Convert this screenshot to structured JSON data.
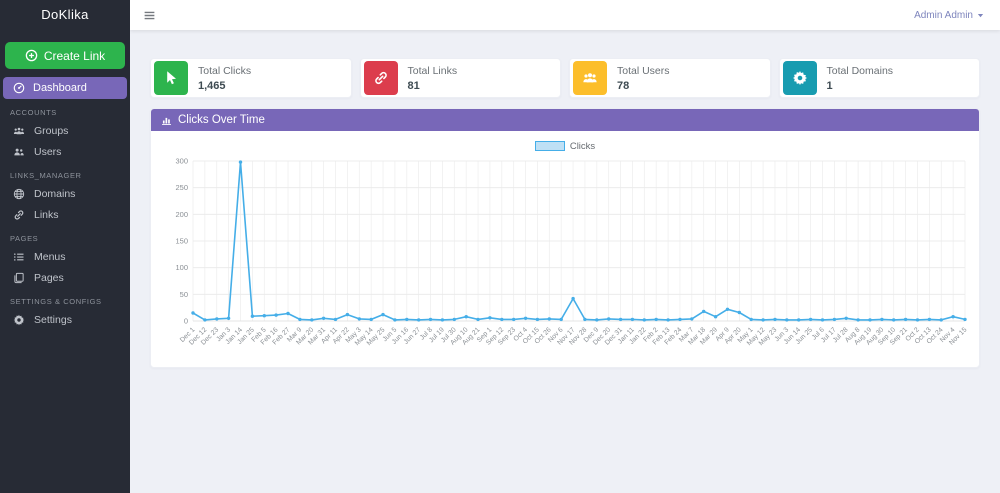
{
  "app": {
    "brand": "DoKlika"
  },
  "topbar": {
    "user_menu_label": "Admin Admin"
  },
  "sidebar": {
    "create_link_label": "Create Link",
    "dashboard": {
      "label": "Dashboard",
      "icon": "dashboard",
      "active": true
    },
    "sections": [
      {
        "label": "ACCOUNTS",
        "items": [
          {
            "label": "Groups",
            "icon": "groups"
          },
          {
            "label": "Users",
            "icon": "users"
          }
        ]
      },
      {
        "label": "LINKS_MANAGER",
        "items": [
          {
            "label": "Domains",
            "icon": "globe"
          },
          {
            "label": "Links",
            "icon": "link"
          }
        ]
      },
      {
        "label": "PAGES",
        "items": [
          {
            "label": "Menus",
            "icon": "menu-list"
          },
          {
            "label": "Pages",
            "icon": "pages"
          }
        ]
      },
      {
        "label": "SETTINGS & CONFIGS",
        "items": [
          {
            "label": "Settings",
            "icon": "gear"
          }
        ]
      }
    ]
  },
  "stat_cards": [
    {
      "label": "Total Clicks",
      "value": "1,465",
      "icon": "mouse-pointer",
      "color": "#2db44d"
    },
    {
      "label": "Total Links",
      "value": "81",
      "icon": "link",
      "color": "#dc3d4d"
    },
    {
      "label": "Total Users",
      "value": "78",
      "icon": "users-group",
      "color": "#fcbe2b"
    },
    {
      "label": "Total Domains",
      "value": "1",
      "icon": "gear",
      "color": "#189cb0"
    }
  ],
  "chart_panel": {
    "title": "Clicks Over Time",
    "header_color": "#7867b8"
  },
  "chart_data": {
    "type": "line",
    "title": "Clicks Over Time",
    "legend_position": "top",
    "grid": true,
    "ylim": [
      0,
      300
    ],
    "yticks": [
      0,
      50,
      100,
      150,
      200,
      250,
      300
    ],
    "line_color": "#45aee8",
    "fill_color": "#bfe0f5",
    "categories": [
      "Dec 1",
      "Dec 12",
      "Dec 23",
      "Jan 3",
      "Jan 14",
      "Jan 25",
      "Feb 5",
      "Feb 16",
      "Feb 27",
      "Mar 9",
      "Mar 20",
      "Mar 31",
      "Apr 11",
      "Apr 22",
      "May 3",
      "May 14",
      "May 25",
      "Jun 5",
      "Jun 16",
      "Jun 27",
      "Jul 8",
      "Jul 19",
      "Jul 30",
      "Aug 10",
      "Aug 21",
      "Sep 1",
      "Sep 12",
      "Sep 23",
      "Oct 4",
      "Oct 15",
      "Oct 26",
      "Nov 6",
      "Nov 17",
      "Nov 28",
      "Dec 9",
      "Dec 20",
      "Dec 31",
      "Jan 11",
      "Jan 22",
      "Feb 2",
      "Feb 13",
      "Feb 24",
      "Mar 7",
      "Mar 18",
      "Mar 29",
      "Apr 9",
      "Apr 20",
      "May 1",
      "May 12",
      "May 23",
      "Jun 3",
      "Jun 14",
      "Jun 25",
      "Jul 6",
      "Jul 17",
      "Jul 28",
      "Aug 8",
      "Aug 19",
      "Aug 30",
      "Sep 10",
      "Sep 21",
      "Oct 2",
      "Oct 13",
      "Oct 24",
      "Nov 4",
      "Nov 15"
    ],
    "series": [
      {
        "name": "Clicks",
        "values": [
          15,
          2,
          4,
          5,
          298,
          9,
          10,
          11,
          14,
          3,
          2,
          5,
          3,
          12,
          4,
          3,
          12,
          2,
          3,
          2,
          3,
          2,
          3,
          8,
          3,
          6,
          3,
          3,
          5,
          3,
          4,
          3,
          42,
          3,
          2,
          4,
          3,
          3,
          2,
          3,
          2,
          3,
          4,
          18,
          8,
          22,
          16,
          3,
          2,
          3,
          2,
          2,
          3,
          2,
          3,
          5,
          2,
          2,
          3,
          2,
          3,
          2,
          3,
          2,
          8,
          3
        ]
      }
    ]
  }
}
